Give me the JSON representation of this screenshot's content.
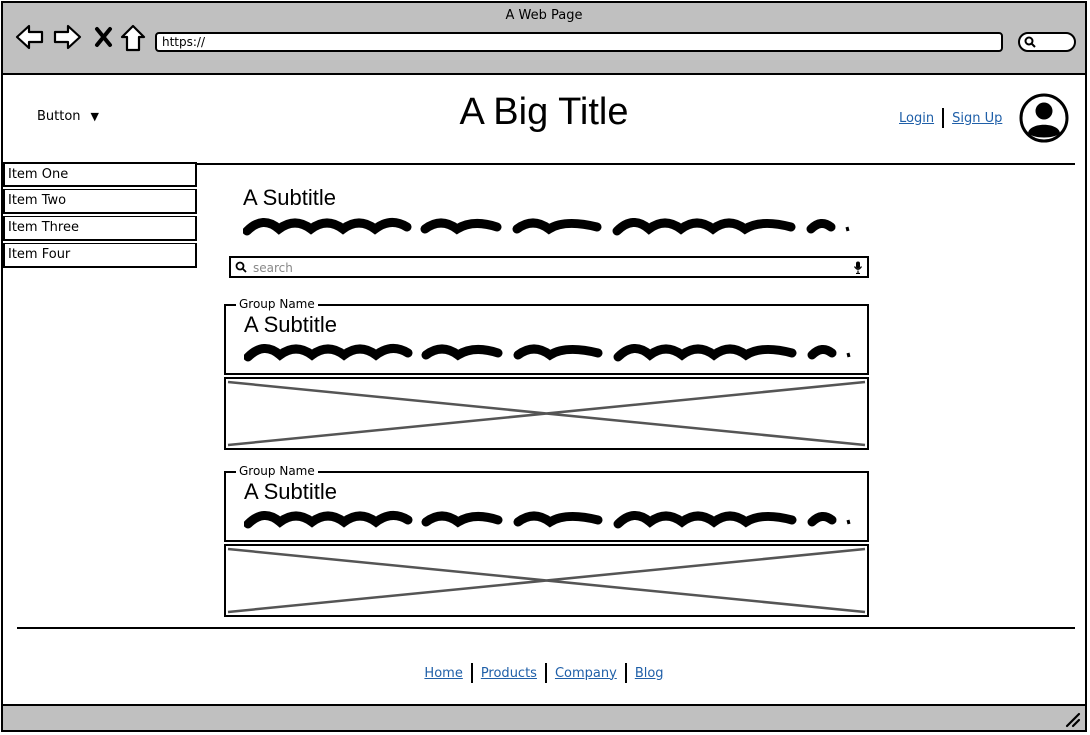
{
  "window": {
    "title": "A Web Page",
    "url": "https://"
  },
  "header": {
    "dropdown_label": "Button",
    "title": "A Big Title",
    "login": "Login",
    "signup": "Sign Up"
  },
  "menu": {
    "items": [
      "Item One",
      "Item Two",
      "Item Three",
      "Item Four"
    ]
  },
  "main": {
    "subtitle": "A Subtitle",
    "search": {
      "placeholder": "search"
    },
    "groups": [
      {
        "name": "Group Name",
        "subtitle": "A Subtitle"
      },
      {
        "name": "Group Name",
        "subtitle": "A Subtitle"
      }
    ]
  },
  "footer": {
    "links": [
      "Home",
      "Products",
      "Company",
      "Blog"
    ]
  },
  "colors": {
    "chrome": "#c0c0c0",
    "link": "#1f5fa8",
    "placeholder_line": "#555555"
  },
  "icons": [
    "back-arrow-icon",
    "forward-arrow-icon",
    "close-x-icon",
    "home-icon",
    "search-icon",
    "microphone-icon",
    "user-avatar-icon",
    "resize-grip-icon"
  ]
}
